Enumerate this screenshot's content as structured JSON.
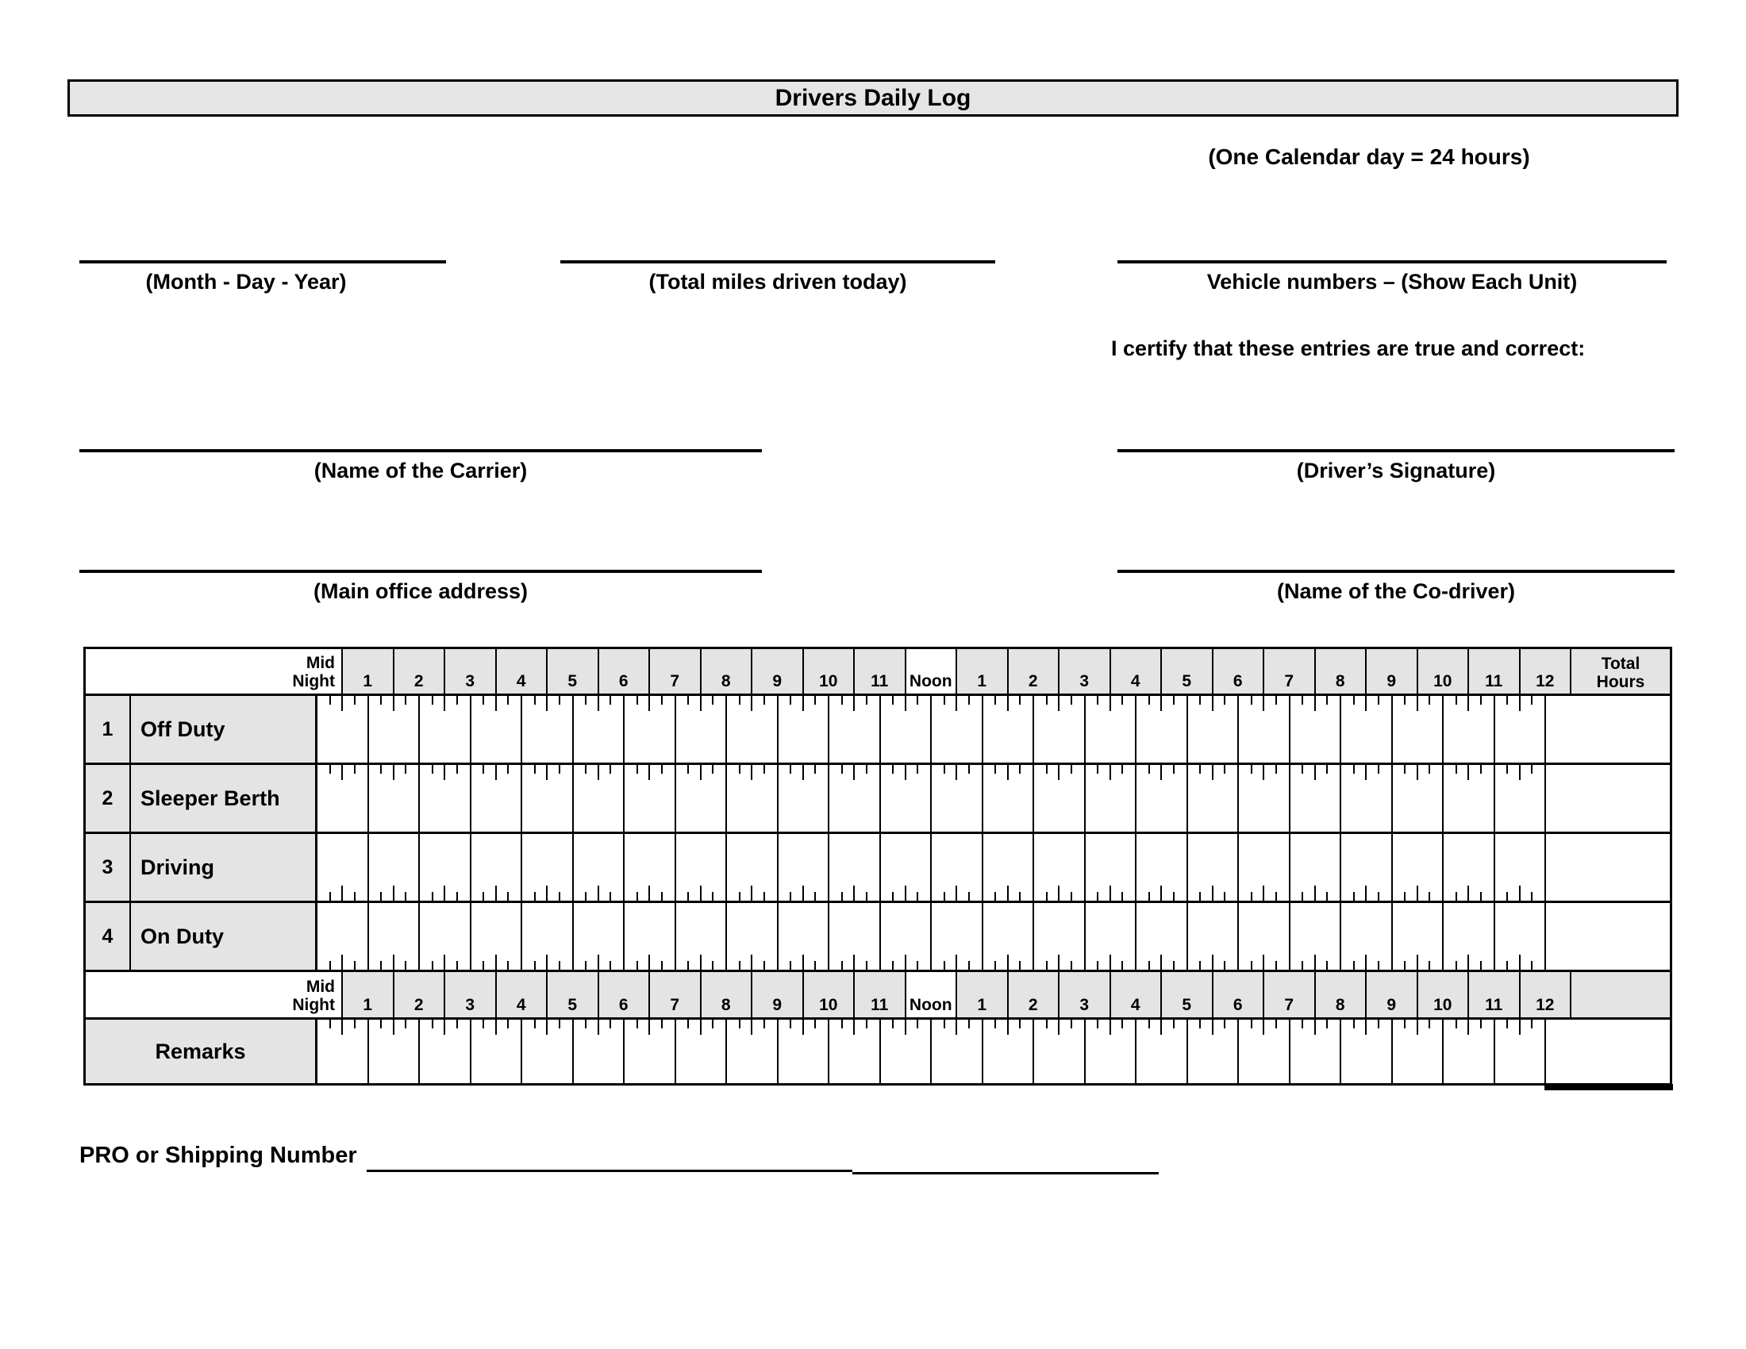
{
  "form": {
    "title": "Drivers Daily Log",
    "calendar_note": "(One Calendar day = 24 hours)",
    "certify_text": "I certify that these entries are true and correct:",
    "pro_shipping_label": "PRO or Shipping Number"
  },
  "top_fields": {
    "date_label": "(Month - Day - Year)",
    "miles_label": "(Total miles driven today)",
    "vehicle_label": "Vehicle numbers – (Show Each Unit)"
  },
  "signature_fields": {
    "carrier_label": "(Name of the Carrier)",
    "driver_signature_label": "(Driver’s Signature)",
    "office_label": "(Main office address)",
    "codriver_label": "(Name of the Co-driver)"
  },
  "grid": {
    "midnight_label": [
      "Mid",
      "Night"
    ],
    "hour_labels": [
      "1",
      "2",
      "3",
      "4",
      "5",
      "6",
      "7",
      "8",
      "9",
      "10",
      "11",
      "Noon",
      "1",
      "2",
      "3",
      "4",
      "5",
      "6",
      "7",
      "8",
      "9",
      "10",
      "11",
      "12"
    ],
    "total_hours_label": [
      "Total",
      "Hours"
    ],
    "duty_rows": [
      {
        "num": "1",
        "label": "Off Duty"
      },
      {
        "num": "2",
        "label": "Sleeper Berth"
      },
      {
        "num": "3",
        "label": "Driving"
      },
      {
        "num": "4",
        "label": "On Duty"
      }
    ],
    "remarks_label": "Remarks"
  }
}
